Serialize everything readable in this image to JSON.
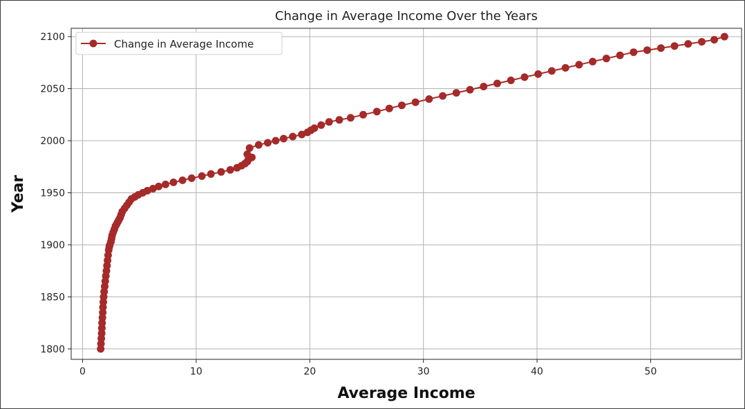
{
  "chart_data": {
    "type": "line",
    "title": "Change in Average Income Over the Years",
    "xlabel": "Average Income",
    "ylabel": "Year",
    "xlim": [
      -1,
      58
    ],
    "ylim": [
      1790,
      2108
    ],
    "xticks": [
      0,
      10,
      20,
      30,
      40,
      50
    ],
    "yticks": [
      1800,
      1850,
      1900,
      1950,
      2000,
      2050,
      2100
    ],
    "grid": true,
    "legend_position": "top-left",
    "series": [
      {
        "name": "Change in Average Income",
        "color": "#a52a2a",
        "marker": "circle",
        "x": [
          1.6,
          1.62,
          1.65,
          1.68,
          1.7,
          1.72,
          1.75,
          1.78,
          1.8,
          1.83,
          1.86,
          1.9,
          1.95,
          2.0,
          2.05,
          2.1,
          2.15,
          2.2,
          2.25,
          2.3,
          2.35,
          2.4,
          2.5,
          2.55,
          2.6,
          2.7,
          2.8,
          2.9,
          3.0,
          3.1,
          3.2,
          3.3,
          3.4,
          3.5,
          3.7,
          3.9,
          4.1,
          4.3,
          4.6,
          4.9,
          5.3,
          5.7,
          6.2,
          6.7,
          7.3,
          8.0,
          8.8,
          9.6,
          10.5,
          11.3,
          12.2,
          13.0,
          13.6,
          14.0,
          14.3,
          14.5,
          14.6,
          14.9,
          14.5,
          14.7,
          15.5,
          16.3,
          17.0,
          17.7,
          18.5,
          19.3,
          19.8,
          20.1,
          20.4,
          21.0,
          21.7,
          22.6,
          23.6,
          24.7,
          25.9,
          27.0,
          28.1,
          29.3,
          30.5,
          31.7,
          32.9,
          34.1,
          35.3,
          36.5,
          37.7,
          38.9,
          40.1,
          41.3,
          42.5,
          43.7,
          44.9,
          46.1,
          47.3,
          48.5,
          49.7,
          50.9,
          52.1,
          53.3,
          54.5,
          55.6,
          56.5
        ],
        "y": [
          1800,
          1805,
          1810,
          1815,
          1820,
          1825,
          1830,
          1835,
          1840,
          1845,
          1850,
          1855,
          1860,
          1865,
          1870,
          1875,
          1880,
          1885,
          1890,
          1895,
          1898,
          1900,
          1903,
          1906,
          1909,
          1912,
          1915,
          1918,
          1920,
          1922,
          1924,
          1926,
          1929,
          1932,
          1935,
          1938,
          1941,
          1944,
          1946,
          1948,
          1950,
          1952,
          1954,
          1956,
          1958,
          1960,
          1962,
          1964,
          1966,
          1968,
          1970,
          1972,
          1974,
          1976,
          1978,
          1980,
          1982,
          1984,
          1987,
          1993,
          1996,
          1998,
          2000,
          2002,
          2004,
          2006,
          2008,
          2010,
          2012,
          2015,
          2018,
          2020,
          2022,
          2025,
          2028,
          2031,
          2034,
          2037,
          2040,
          2043,
          2046,
          2049,
          2052,
          2055,
          2058,
          2061,
          2064,
          2067,
          2070,
          2073,
          2076,
          2079,
          2082,
          2085,
          2087,
          2089,
          2091,
          2093,
          2095,
          2097,
          2100
        ]
      }
    ]
  }
}
